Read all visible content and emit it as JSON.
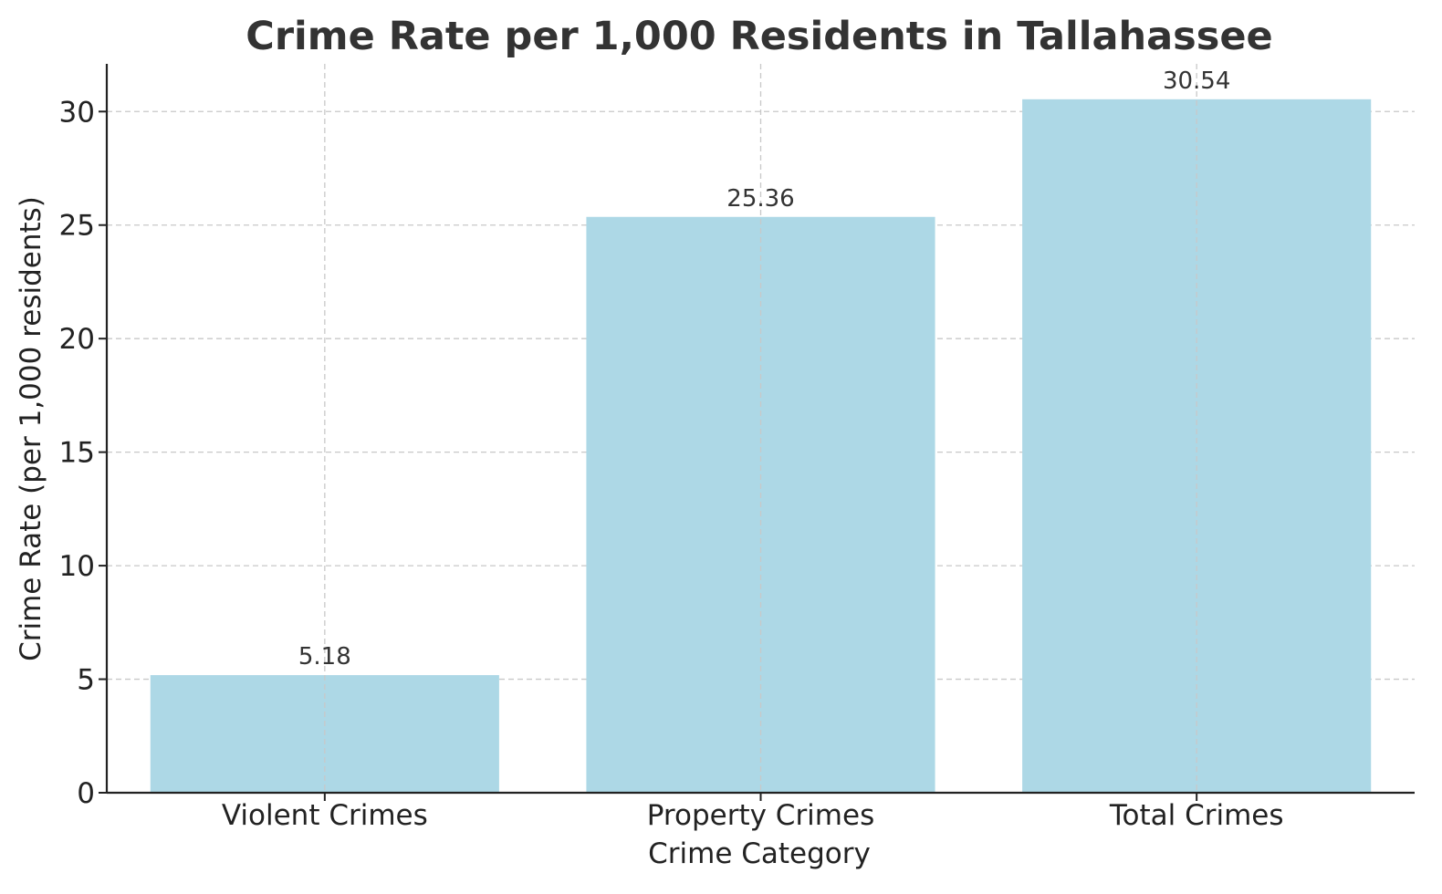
{
  "chart_data": {
    "type": "bar",
    "title": "Crime Rate per 1,000 Residents in Tallahassee",
    "xlabel": "Crime Category",
    "ylabel": "Crime Rate (per 1,000 residents)",
    "categories": [
      "Violent Crimes",
      "Property Crimes",
      "Total Crimes"
    ],
    "values": [
      5.18,
      25.36,
      30.54
    ],
    "data_labels": [
      "5.18",
      "25.36",
      "30.54"
    ],
    "ylim": [
      0,
      32.1
    ],
    "yticks": [
      0,
      5,
      10,
      15,
      20,
      25,
      30
    ],
    "grid": true,
    "bar_color": "#add8e6"
  }
}
